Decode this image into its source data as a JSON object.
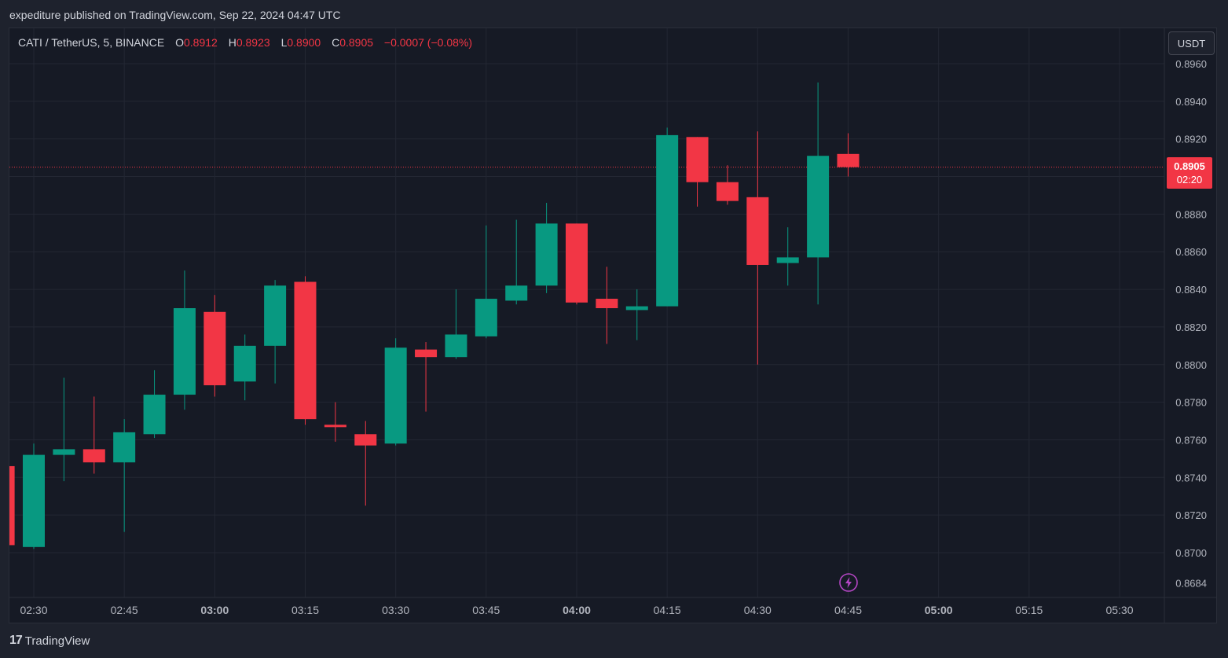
{
  "header": {
    "published_text": "expediture published on TradingView.com, Sep 22, 2024 04:47 UTC"
  },
  "legend": {
    "symbol": "CATI / TetherUS, 5, BINANCE",
    "open_label": "O",
    "open": "0.8912",
    "high_label": "H",
    "high": "0.8923",
    "low_label": "L",
    "low": "0.8900",
    "close_label": "C",
    "close": "0.8905",
    "change": "−0.0007 (−0.08%)"
  },
  "currency_button": "USDT",
  "price_badge": {
    "price": "0.8905",
    "countdown": "02:20"
  },
  "footer": {
    "brand_mark": "17",
    "brand": "TradingView"
  },
  "colors": {
    "up": "#089981",
    "down": "#f23645",
    "background": "#161a25",
    "grid": "#232733",
    "text": "#d1d4dc"
  },
  "icons": {
    "alert": "lightning-icon"
  },
  "chart_data": {
    "type": "candlestick",
    "y_ticks": [
      "0.8960",
      "0.8940",
      "0.8920",
      "0.8900",
      "0.8880",
      "0.8860",
      "0.8840",
      "0.8820",
      "0.8800",
      "0.8780",
      "0.8760",
      "0.8740",
      "0.8720",
      "0.8700",
      "0.8684"
    ],
    "x_ticks": [
      {
        "label": "02:30",
        "bold": false,
        "t": "02:30"
      },
      {
        "label": "02:45",
        "bold": false,
        "t": "02:45"
      },
      {
        "label": "03:00",
        "bold": true,
        "t": "03:00"
      },
      {
        "label": "03:15",
        "bold": false,
        "t": "03:15"
      },
      {
        "label": "03:30",
        "bold": false,
        "t": "03:30"
      },
      {
        "label": "03:45",
        "bold": false,
        "t": "03:45"
      },
      {
        "label": "04:00",
        "bold": true,
        "t": "04:00"
      },
      {
        "label": "04:15",
        "bold": false,
        "t": "04:15"
      },
      {
        "label": "04:30",
        "bold": false,
        "t": "04:30"
      },
      {
        "label": "04:45",
        "bold": false,
        "t": "04:45"
      },
      {
        "label": "05:00",
        "bold": true,
        "t": "05:00"
      },
      {
        "label": "05:15",
        "bold": false,
        "t": "05:15"
      },
      {
        "label": "05:30",
        "bold": false,
        "t": "05:30"
      }
    ],
    "ylim": [
      0.868,
      0.8962
    ],
    "xlim": [
      "02:25",
      "05:35"
    ],
    "last_price": 0.8905,
    "candles": [
      {
        "t": "02:25",
        "o": 0.8746,
        "h": 0.8746,
        "l": 0.8704,
        "c": 0.8704
      },
      {
        "t": "02:30",
        "o": 0.8703,
        "h": 0.8758,
        "l": 0.8702,
        "c": 0.8752
      },
      {
        "t": "02:35",
        "o": 0.8752,
        "h": 0.8793,
        "l": 0.8738,
        "c": 0.8755
      },
      {
        "t": "02:40",
        "o": 0.8755,
        "h": 0.8783,
        "l": 0.8742,
        "c": 0.8748
      },
      {
        "t": "02:45",
        "o": 0.8748,
        "h": 0.8771,
        "l": 0.8711,
        "c": 0.8764
      },
      {
        "t": "02:50",
        "o": 0.8763,
        "h": 0.8797,
        "l": 0.8761,
        "c": 0.8784
      },
      {
        "t": "02:55",
        "o": 0.8784,
        "h": 0.885,
        "l": 0.8776,
        "c": 0.883
      },
      {
        "t": "03:00",
        "o": 0.8828,
        "h": 0.8837,
        "l": 0.8783,
        "c": 0.8789
      },
      {
        "t": "03:05",
        "o": 0.8791,
        "h": 0.8816,
        "l": 0.8781,
        "c": 0.881
      },
      {
        "t": "03:10",
        "o": 0.881,
        "h": 0.8845,
        "l": 0.879,
        "c": 0.8842
      },
      {
        "t": "03:15",
        "o": 0.8844,
        "h": 0.8847,
        "l": 0.8768,
        "c": 0.8771
      },
      {
        "t": "03:20",
        "o": 0.8768,
        "h": 0.878,
        "l": 0.8759,
        "c": 0.8767
      },
      {
        "t": "03:25",
        "o": 0.8763,
        "h": 0.877,
        "l": 0.8725,
        "c": 0.8757
      },
      {
        "t": "03:30",
        "o": 0.8758,
        "h": 0.8814,
        "l": 0.8757,
        "c": 0.8809
      },
      {
        "t": "03:35",
        "o": 0.8808,
        "h": 0.8812,
        "l": 0.8775,
        "c": 0.8804
      },
      {
        "t": "03:40",
        "o": 0.8804,
        "h": 0.884,
        "l": 0.8803,
        "c": 0.8816
      },
      {
        "t": "03:45",
        "o": 0.8815,
        "h": 0.8874,
        "l": 0.8814,
        "c": 0.8835
      },
      {
        "t": "03:50",
        "o": 0.8834,
        "h": 0.8877,
        "l": 0.8832,
        "c": 0.8842
      },
      {
        "t": "03:55",
        "o": 0.8842,
        "h": 0.8886,
        "l": 0.8838,
        "c": 0.8875
      },
      {
        "t": "04:00",
        "o": 0.8875,
        "h": 0.8875,
        "l": 0.8832,
        "c": 0.8833
      },
      {
        "t": "04:05",
        "o": 0.8835,
        "h": 0.8852,
        "l": 0.8811,
        "c": 0.883
      },
      {
        "t": "04:10",
        "o": 0.8829,
        "h": 0.884,
        "l": 0.8813,
        "c": 0.8831
      },
      {
        "t": "04:15",
        "o": 0.8831,
        "h": 0.8926,
        "l": 0.8831,
        "c": 0.8922
      },
      {
        "t": "04:20",
        "o": 0.8921,
        "h": 0.8921,
        "l": 0.8884,
        "c": 0.8897
      },
      {
        "t": "04:25",
        "o": 0.8897,
        "h": 0.8906,
        "l": 0.8885,
        "c": 0.8887
      },
      {
        "t": "04:30",
        "o": 0.8889,
        "h": 0.8924,
        "l": 0.88,
        "c": 0.8853
      },
      {
        "t": "04:35",
        "o": 0.8854,
        "h": 0.8873,
        "l": 0.8842,
        "c": 0.8857
      },
      {
        "t": "04:40",
        "o": 0.8857,
        "h": 0.895,
        "l": 0.8832,
        "c": 0.8911
      },
      {
        "t": "04:45",
        "o": 0.8912,
        "h": 0.8923,
        "l": 0.89,
        "c": 0.8905
      }
    ]
  }
}
